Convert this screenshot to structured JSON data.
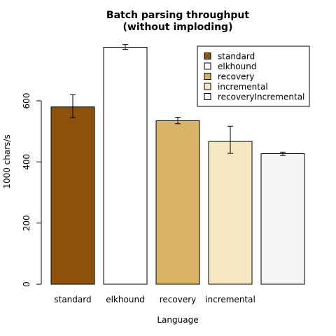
{
  "chart_data": {
    "type": "bar",
    "title_lines": [
      "Batch parsing throughput",
      "(without imploding)"
    ],
    "xlabel": "Language",
    "ylabel": "1000 chars/s",
    "ylim": [
      0,
      800
    ],
    "yticks": [
      0,
      200,
      400,
      600
    ],
    "categories": [
      "standard",
      "elkhound",
      "recovery",
      "incremental",
      "recoveryIncremental"
    ],
    "category_tick_labels": [
      "standard",
      "elkhound",
      "recovery",
      "incremental",
      ""
    ],
    "values": [
      580,
      775,
      535,
      467,
      427
    ],
    "error_low": [
      545,
      768,
      525,
      428,
      421
    ],
    "error_high": [
      620,
      784,
      546,
      517,
      432
    ],
    "colors": [
      "#8c510a",
      "#ffffff",
      "#d8b365",
      "#f6e8c3",
      "#f5f5f5"
    ],
    "grid": false,
    "legend": {
      "position": "top-right",
      "entries": [
        "standard",
        "elkhound",
        "recovery",
        "incremental",
        "recoveryIncremental"
      ]
    }
  }
}
